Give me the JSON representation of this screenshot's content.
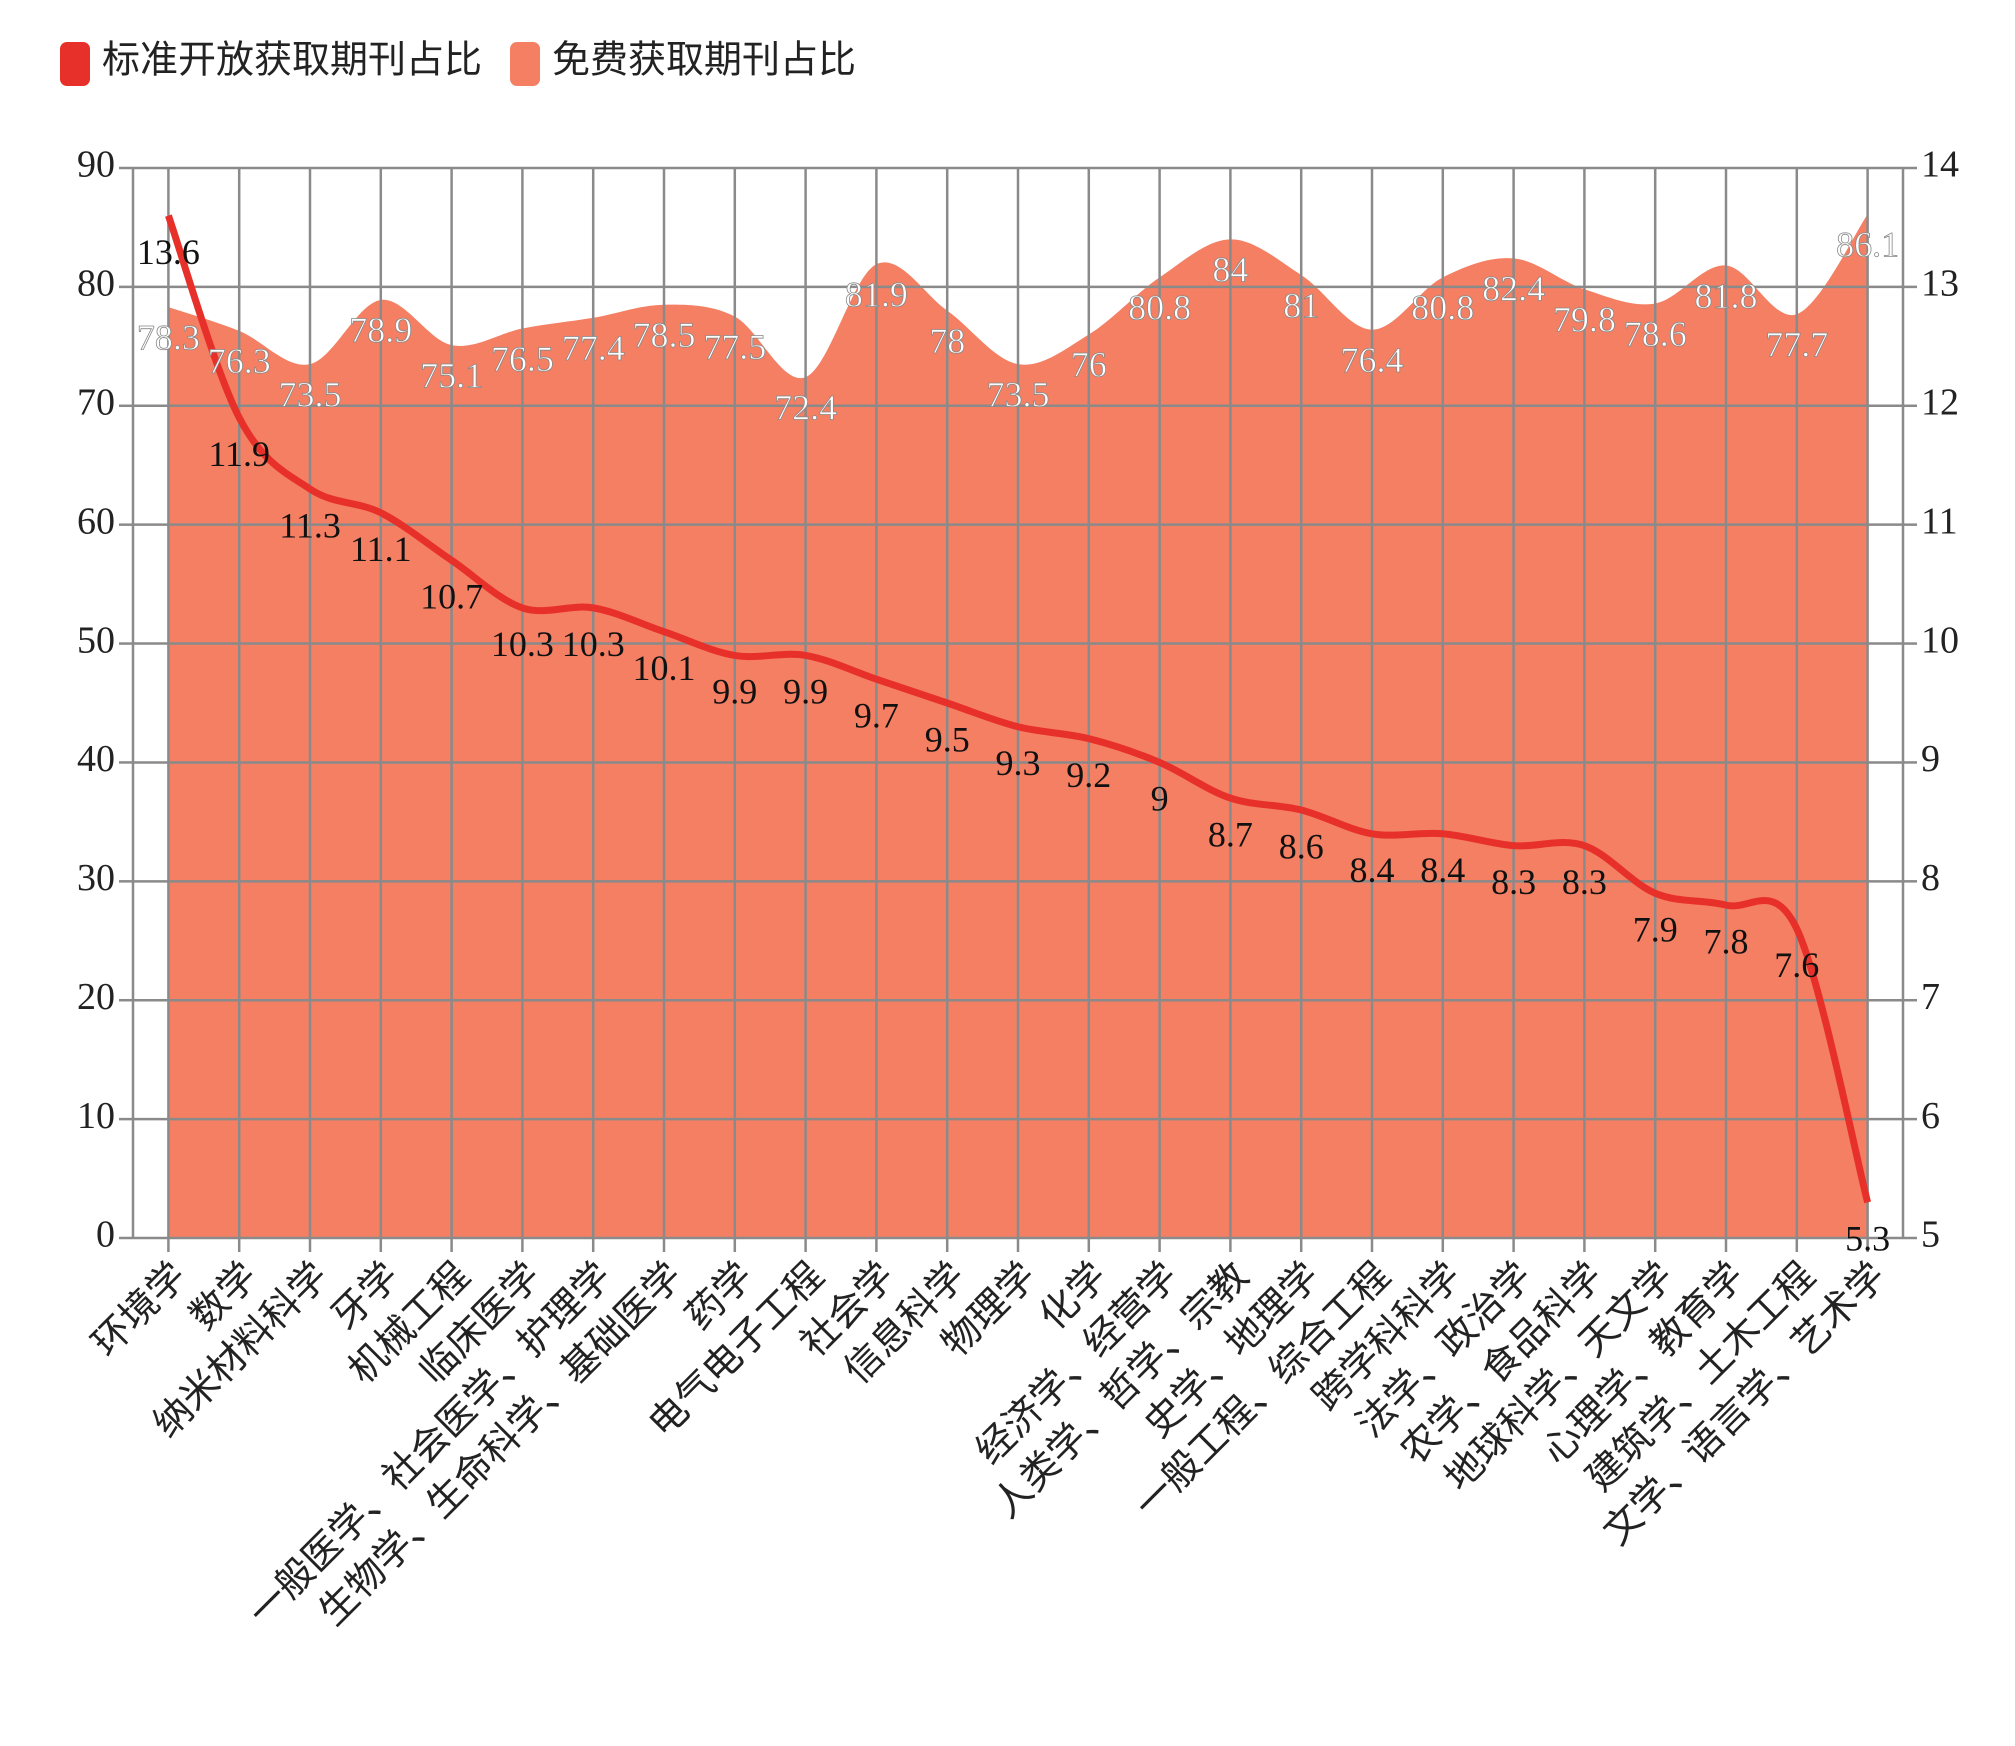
{
  "chart_data": {
    "type": "area-line",
    "categories": [
      "环境学",
      "数学",
      "纳米材料科学",
      "牙学",
      "机械工程",
      "临床医学",
      "一般医学、社会医学、护理学",
      "生物学、生命科学、基础医学",
      "药学",
      "电气电子工程",
      "社会学",
      "信息科学",
      "物理学",
      "化学",
      "经济学、经营学",
      "人类学、哲学、宗教",
      "史学、地理学",
      "一般工程、综合工程",
      "跨学科科学",
      "法学、政治学",
      "农学、食品科学",
      "地球科学、天文学",
      "心理学、教育学",
      "建筑学、土木工程",
      "文学、语言学、艺术学"
    ],
    "series": [
      {
        "name": "标准开放获取期刊占比",
        "type": "line",
        "axis": "y2",
        "color": "#e8302a",
        "values": [
          13.6,
          11.9,
          11.3,
          11.1,
          10.7,
          10.3,
          10.3,
          10.1,
          9.9,
          9.9,
          9.7,
          9.5,
          9.3,
          9.2,
          9,
          8.7,
          8.6,
          8.4,
          8.4,
          8.3,
          8.3,
          7.9,
          7.8,
          7.6,
          5.3
        ]
      },
      {
        "name": "免费获取期刊占比",
        "type": "area",
        "color": "#f47f63",
        "values": [
          78.3,
          76.3,
          73.5,
          78.9,
          75.1,
          76.5,
          77.4,
          78.5,
          77.5,
          72.4,
          81.9,
          78,
          73.5,
          76,
          80.8,
          84,
          81,
          76.4,
          80.8,
          82.4,
          79.8,
          78.6,
          81.8,
          77.7,
          86.1
        ]
      }
    ],
    "ylim": [
      0,
      90
    ],
    "yticks": [
      0,
      10,
      20,
      30,
      40,
      50,
      60,
      70,
      80,
      90
    ],
    "y2lim": [
      5,
      14
    ],
    "y2ticks": [
      5,
      6,
      7,
      8,
      9,
      10,
      11,
      12,
      13,
      14
    ],
    "grid": true,
    "legend": "top-left"
  }
}
